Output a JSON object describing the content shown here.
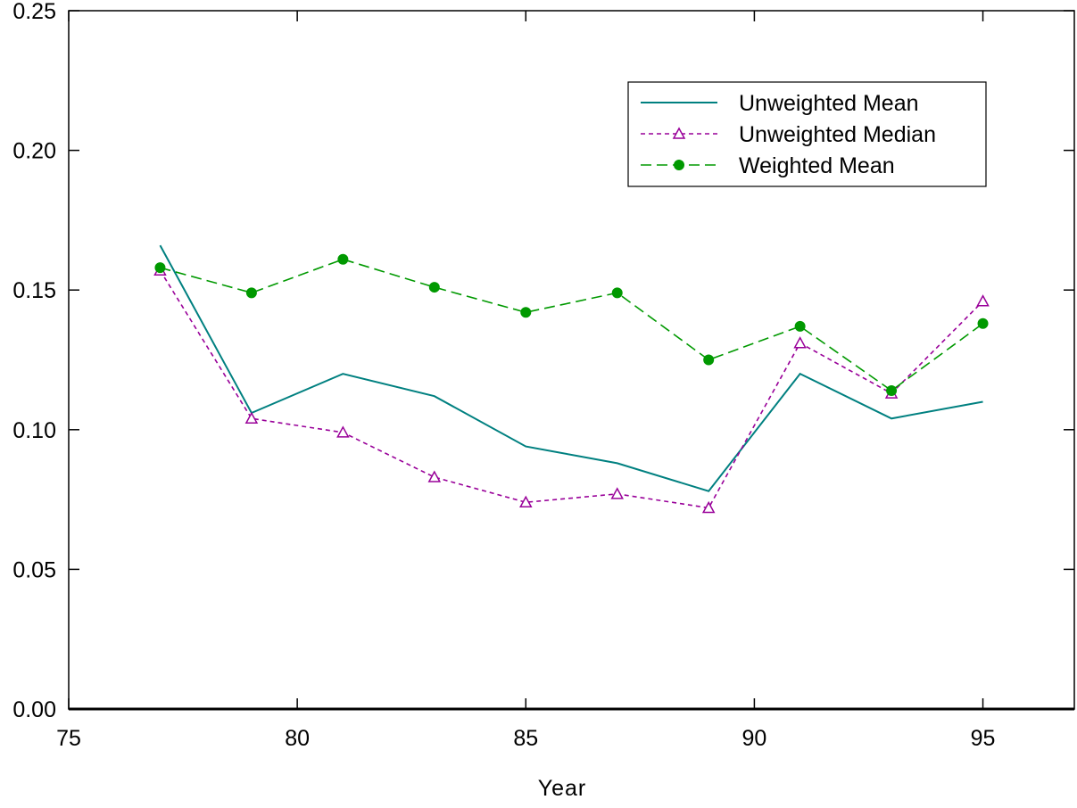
{
  "chart_data": {
    "type": "line",
    "title": "",
    "xlabel": "Year",
    "ylabel": "",
    "xlim": [
      75,
      97
    ],
    "ylim": [
      0,
      0.25
    ],
    "x_ticks": [
      75,
      80,
      85,
      90,
      95
    ],
    "x_tick_labels": [
      "75",
      "80",
      "85",
      "90",
      "95"
    ],
    "y_ticks": [
      0,
      0.05,
      0.1,
      0.15,
      0.2,
      0.25
    ],
    "y_tick_labels": [
      "0.00",
      "0.05",
      "0.10",
      "0.15",
      "0.20",
      "0.25"
    ],
    "grid": false,
    "legend_position": "top-right",
    "x": [
      77,
      79,
      81,
      83,
      85,
      87,
      89,
      91,
      93,
      95
    ],
    "series": [
      {
        "name": "Unweighted Mean",
        "color": "#008080",
        "style": "solid",
        "marker": "none",
        "values": [
          0.166,
          0.106,
          0.12,
          0.112,
          0.094,
          0.088,
          0.078,
          0.12,
          0.104,
          0.11
        ]
      },
      {
        "name": "Unweighted Median",
        "color": "#990099",
        "style": "dotted",
        "marker": "triangle-open",
        "values": [
          0.157,
          0.104,
          0.099,
          0.083,
          0.074,
          0.077,
          0.072,
          0.131,
          0.113,
          0.146
        ]
      },
      {
        "name": "Weighted Mean",
        "color": "#009900",
        "style": "dashed",
        "marker": "circle-filled",
        "values": [
          0.158,
          0.149,
          0.161,
          0.151,
          0.142,
          0.149,
          0.125,
          0.137,
          0.114,
          0.138
        ]
      }
    ]
  }
}
